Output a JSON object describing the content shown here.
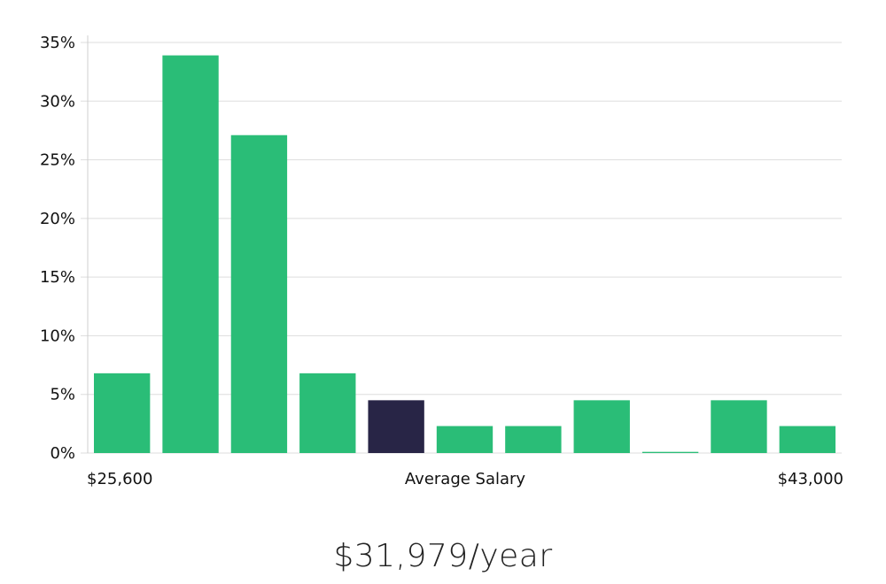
{
  "chart_data": {
    "type": "bar",
    "title": "",
    "xlabel": "Average Salary",
    "ylabel": "",
    "x_min_label": "$25,600",
    "x_max_label": "$43,000",
    "ylim": [
      0,
      35
    ],
    "y_ticks": [
      0,
      5,
      10,
      15,
      20,
      25,
      30,
      35
    ],
    "y_tick_labels": [
      "0%",
      "5%",
      "10%",
      "15%",
      "20%",
      "25%",
      "30%",
      "35%"
    ],
    "values": [
      6.8,
      33.9,
      27.1,
      6.8,
      4.5,
      2.3,
      2.3,
      4.5,
      0.1,
      4.5,
      2.3
    ],
    "highlight_index": 4,
    "grid": true
  },
  "colors": {
    "bar": "#2abd77",
    "bar_highlight": "#282546",
    "grid": "#dddddd"
  },
  "summary": {
    "salary_text": "$31,979/year"
  }
}
